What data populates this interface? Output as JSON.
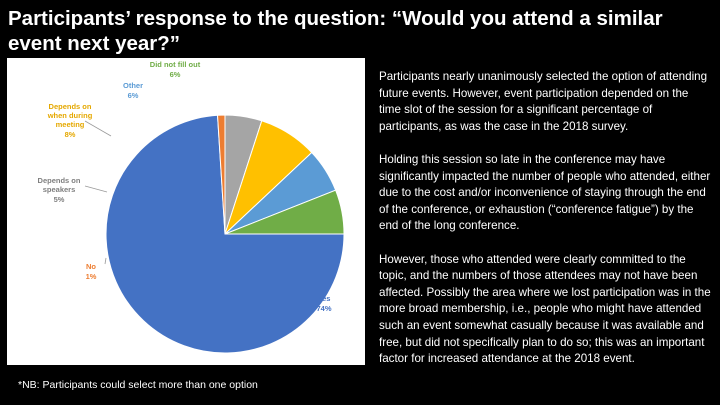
{
  "title": "Participants’ response to the question: “Would you attend a similar event next year?”",
  "paragraphs": [
    "Participants nearly unanimously selected the option of attending future events.  However, event participation depended on the time slot of the session for a significant percentage of participants, as was the case in the 2018 survey.",
    "Holding this session so late in the conference may have significantly impacted the number of people who attended, either due to the cost and/or inconvenience of staying through the end of the conference, or exhaustion (“conference fatigue”) by the end of the long conference.",
    "However, those who attended were clearly committed to the topic, and the numbers of those attendees may  not have been affected. Possibly the area where we lost participation was in the more broad membership, i.e.,  people who might have attended such an event somewhat casually because it was available and free, but did not specifically plan to do so; this was an important factor for increased attendance at the 2018 event."
  ],
  "footnote": "*NB: Participants could select more than one option",
  "chart_data": {
    "type": "pie",
    "title": "",
    "slices": [
      {
        "label": "Yes",
        "value": 74,
        "display": "74%",
        "color": "#4472C4"
      },
      {
        "label": "No",
        "value": 1,
        "display": "1%",
        "color": "#ED7D31"
      },
      {
        "label": "Depends on speakers",
        "value": 5,
        "display": "5%",
        "color": "#A5A5A5"
      },
      {
        "label": "Depends on when during meeting",
        "value": 8,
        "display": "8%",
        "color": "#FFC000"
      },
      {
        "label": "Other",
        "value": 6,
        "display": "6%",
        "color": "#5B9BD5"
      },
      {
        "label": "Did not fill out",
        "value": 6,
        "display": "6%",
        "color": "#70AD47"
      }
    ]
  }
}
